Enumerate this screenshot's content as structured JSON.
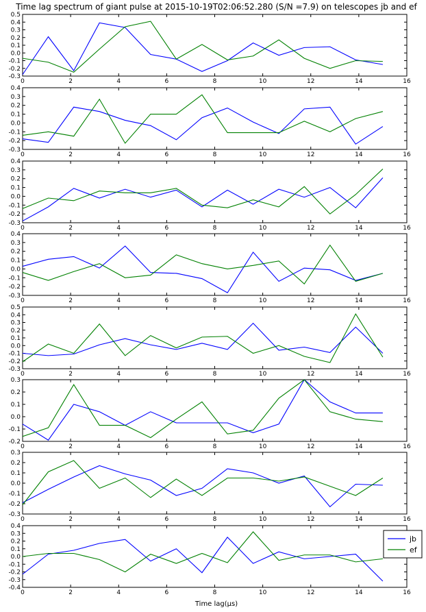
{
  "chart_data": {
    "type": "line",
    "title": "Time lag spectrum of giant pulse at 2015-10-19T02:06:52.280 (S/N =7.9) on telescopes jb and ef",
    "xlabel": "Time lag(μs)",
    "ylabel": "",
    "xlim": [
      0,
      16
    ],
    "xticks": [
      0,
      2,
      4,
      6,
      8,
      10,
      12,
      14,
      16
    ],
    "x": [
      0.0,
      1.07,
      2.13,
      3.2,
      4.27,
      5.33,
      6.4,
      7.47,
      8.53,
      9.6,
      10.67,
      11.73,
      12.8,
      13.87,
      15.0
    ],
    "grid": false,
    "legend": {
      "placement": "right of bottom panel",
      "entries": [
        "jb",
        "ef"
      ]
    },
    "colors": {
      "jb": "#0000ff",
      "ef": "#008000"
    },
    "panels": [
      {
        "ylim": [
          -0.3,
          0.5
        ],
        "yticks": [
          "-0.3",
          "-0.2",
          "-0.1",
          "0.0",
          "0.1",
          "0.2",
          "0.3",
          "0.4",
          "0.5"
        ],
        "series": [
          {
            "name": "jb",
            "values": [
              -0.28,
              0.21,
              -0.23,
              0.39,
              0.33,
              -0.02,
              -0.08,
              -0.24,
              -0.1,
              0.13,
              -0.03,
              0.07,
              0.08,
              -0.09,
              -0.15
            ]
          },
          {
            "name": "ef",
            "values": [
              -0.07,
              -0.12,
              -0.25,
              0.05,
              0.34,
              0.41,
              -0.08,
              0.11,
              -0.09,
              -0.04,
              0.17,
              -0.07,
              -0.2,
              -0.1,
              -0.11
            ]
          }
        ]
      },
      {
        "ylim": [
          -0.3,
          0.4
        ],
        "yticks": [
          "-0.3",
          "-0.2",
          "-0.1",
          "0.0",
          "0.1",
          "0.2",
          "0.3",
          "0.4"
        ],
        "series": [
          {
            "name": "jb",
            "values": [
              -0.18,
              -0.22,
              0.18,
              0.13,
              0.03,
              -0.03,
              -0.19,
              0.06,
              0.17,
              0.01,
              -0.12,
              0.16,
              0.18,
              -0.24,
              -0.04
            ]
          },
          {
            "name": "ef",
            "values": [
              -0.14,
              -0.1,
              -0.15,
              0.27,
              -0.23,
              0.1,
              0.1,
              0.32,
              -0.11,
              -0.11,
              -0.11,
              0.02,
              -0.1,
              0.05,
              0.13
            ]
          }
        ]
      },
      {
        "ylim": [
          -0.3,
          0.4
        ],
        "yticks": [
          "-0.3",
          "-0.2",
          "-0.1",
          "0.0",
          "0.1",
          "0.2",
          "0.3",
          "0.4"
        ],
        "series": [
          {
            "name": "jb",
            "values": [
              -0.28,
              -0.12,
              0.09,
              -0.02,
              0.08,
              -0.01,
              0.07,
              -0.12,
              0.07,
              -0.09,
              0.08,
              -0.01,
              0.1,
              -0.13,
              0.21
            ]
          },
          {
            "name": "ef",
            "values": [
              -0.14,
              -0.02,
              -0.05,
              0.06,
              0.04,
              0.04,
              0.09,
              -0.1,
              -0.13,
              -0.04,
              -0.12,
              0.11,
              -0.2,
              0.02,
              0.31
            ]
          }
        ]
      },
      {
        "ylim": [
          -0.3,
          0.4
        ],
        "yticks": [
          "-0.3",
          "-0.2",
          "-0.1",
          "0.0",
          "0.1",
          "0.2",
          "0.3",
          "0.4"
        ],
        "series": [
          {
            "name": "jb",
            "values": [
              0.03,
              0.11,
              0.14,
              0.01,
              0.26,
              -0.04,
              -0.05,
              -0.11,
              -0.27,
              0.19,
              -0.14,
              0.01,
              -0.01,
              -0.13,
              -0.05
            ]
          },
          {
            "name": "ef",
            "values": [
              -0.04,
              -0.13,
              -0.03,
              0.06,
              -0.1,
              -0.07,
              0.16,
              0.06,
              0.0,
              0.04,
              0.09,
              -0.17,
              0.27,
              -0.14,
              -0.05
            ]
          }
        ]
      },
      {
        "ylim": [
          -0.3,
          0.5
        ],
        "yticks": [
          "-0.3",
          "-0.2",
          "-0.1",
          "0.0",
          "0.1",
          "0.2",
          "0.3",
          "0.4",
          "0.5"
        ],
        "series": [
          {
            "name": "jb",
            "values": [
              -0.1,
              -0.13,
              -0.11,
              0.01,
              0.09,
              0.01,
              -0.05,
              0.03,
              -0.05,
              0.29,
              -0.06,
              -0.02,
              -0.09,
              0.24,
              -0.1
            ]
          },
          {
            "name": "ef",
            "values": [
              -0.21,
              0.02,
              -0.1,
              0.28,
              -0.13,
              0.13,
              -0.03,
              0.11,
              0.12,
              -0.1,
              0.0,
              -0.14,
              -0.22,
              0.41,
              -0.15
            ]
          }
        ]
      },
      {
        "ylim": [
          -0.2,
          0.3
        ],
        "yticks": [
          "-0.2",
          "-0.1",
          "0.0",
          "0.1",
          "0.2",
          "0.3"
        ],
        "series": [
          {
            "name": "jb",
            "values": [
              -0.06,
              -0.19,
              0.1,
              0.04,
              -0.07,
              0.04,
              -0.05,
              -0.05,
              -0.05,
              -0.13,
              -0.06,
              0.3,
              0.12,
              0.03,
              0.03
            ]
          },
          {
            "name": "ef",
            "values": [
              -0.16,
              -0.09,
              0.26,
              -0.07,
              -0.07,
              -0.17,
              -0.02,
              0.12,
              -0.14,
              -0.11,
              0.15,
              0.3,
              0.04,
              -0.02,
              -0.04
            ]
          }
        ]
      },
      {
        "ylim": [
          -0.3,
          0.3
        ],
        "yticks": [
          "-0.3",
          "-0.2",
          "-0.1",
          "0.0",
          "0.1",
          "0.2",
          "0.3"
        ],
        "series": [
          {
            "name": "jb",
            "values": [
              -0.19,
              -0.06,
              0.06,
              0.17,
              0.09,
              0.03,
              -0.12,
              -0.05,
              0.14,
              0.1,
              0.0,
              0.07,
              -0.23,
              -0.01,
              -0.02
            ]
          },
          {
            "name": "ef",
            "values": [
              -0.21,
              0.11,
              0.22,
              -0.05,
              0.05,
              -0.14,
              0.04,
              -0.12,
              0.05,
              0.05,
              0.02,
              0.06,
              -0.03,
              -0.12,
              0.05
            ]
          }
        ]
      },
      {
        "ylim": [
          -0.4,
          0.4
        ],
        "yticks": [
          "-0.4",
          "-0.3",
          "-0.2",
          "-0.1",
          "0.0",
          "0.1",
          "0.2",
          "0.3",
          "0.4"
        ],
        "series": [
          {
            "name": "jb",
            "values": [
              -0.23,
              0.03,
              0.08,
              0.17,
              0.22,
              -0.06,
              0.1,
              -0.21,
              0.25,
              -0.09,
              0.06,
              -0.03,
              0.0,
              0.03,
              -0.32
            ]
          },
          {
            "name": "ef",
            "values": [
              0.0,
              0.04,
              0.04,
              -0.04,
              -0.2,
              0.03,
              -0.09,
              0.04,
              -0.08,
              0.32,
              -0.05,
              0.02,
              0.02,
              -0.07,
              -0.03
            ]
          }
        ]
      }
    ]
  }
}
